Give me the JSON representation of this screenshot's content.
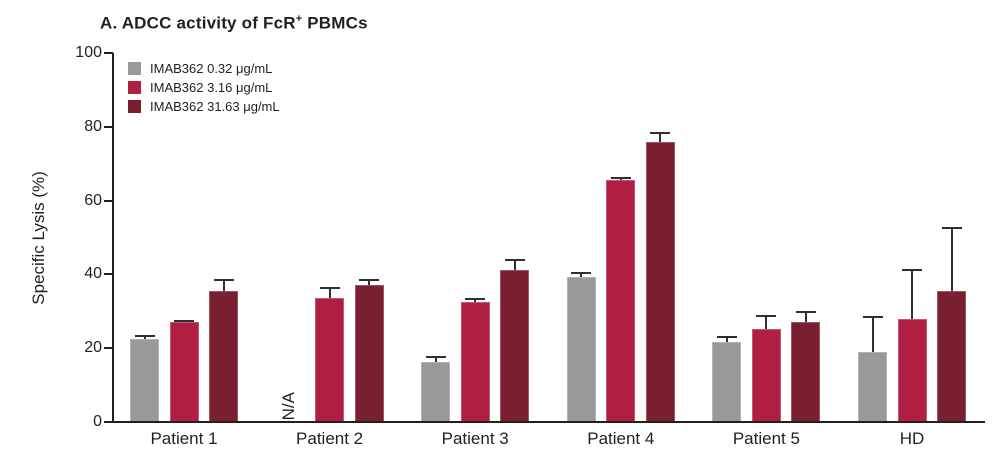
{
  "chart_data": {
    "type": "bar",
    "title": "A. ADCC activity of FcR+ PBMCs",
    "title_parts": {
      "pre": "A. ADCC activity of FcR",
      "sup": "+",
      "post": " PBMCs"
    },
    "ylabel": "Specific Lysis (%)",
    "ylim": [
      0,
      100
    ],
    "yticks": [
      0,
      20,
      40,
      60,
      80,
      100
    ],
    "grid": "off",
    "legend_position": "top-left-inside",
    "error_bars": "upper-only",
    "categories": [
      "Patient 1",
      "Patient 2",
      "Patient 3",
      "Patient 4",
      "Patient 5",
      "HD"
    ],
    "na_label": "N/A",
    "na_position": {
      "category": "Patient 2",
      "series": "IMAB362 0.32 μg/mL"
    },
    "series": [
      {
        "name": "IMAB362 0.32 μg/mL",
        "color": "#97999B",
        "values": [
          22.5,
          null,
          16.3,
          39.3,
          21.8,
          19.0
        ],
        "errors": [
          0.8,
          null,
          1.2,
          1.2,
          1.3,
          9.5
        ]
      },
      {
        "name": "IMAB362 3.16 μg/mL",
        "color": "#B01F42",
        "values": [
          27.0,
          33.5,
          32.5,
          65.5,
          25.3,
          28.0
        ],
        "errors": [
          0.5,
          2.8,
          0.8,
          0.6,
          3.4,
          13.3
        ]
      },
      {
        "name": "IMAB362 31.63 μg/mL",
        "color": "#7A1F30",
        "values": [
          35.5,
          37.2,
          41.2,
          76.0,
          27.2,
          35.5
        ],
        "errors": [
          3.0,
          1.4,
          2.6,
          2.2,
          2.5,
          17.0
        ]
      }
    ],
    "axis_color": "#231F20"
  }
}
